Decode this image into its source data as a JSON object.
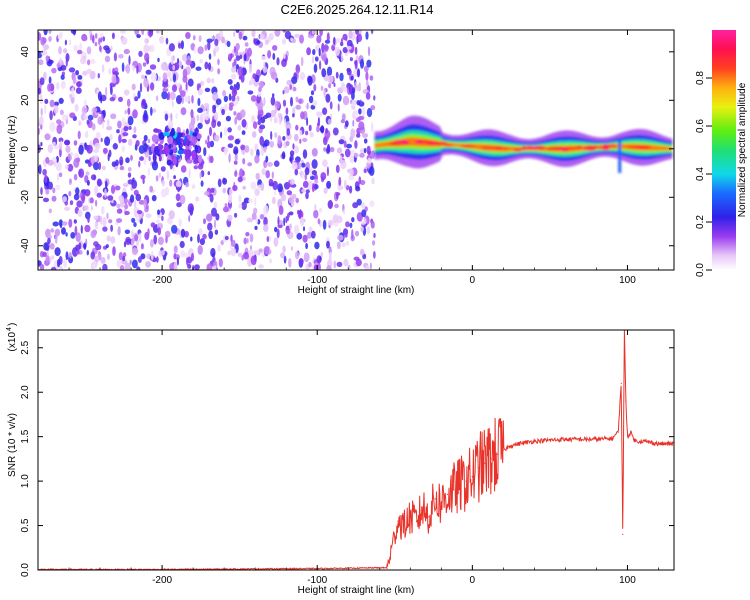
{
  "figure": {
    "title": "C2E6.2025.264.12.11.R14"
  },
  "chart_data": [
    {
      "type": "heatmap",
      "xlabel": "Height of straight line (km)",
      "ylabel": "Frequency (Hz)",
      "xlim": [
        -280,
        130
      ],
      "ylim": [
        -50,
        49
      ],
      "x_ticks": [
        -200,
        -100,
        0,
        100
      ],
      "y_ticks": [
        -40,
        -20,
        0,
        20,
        40
      ],
      "colorbar": {
        "label": "Normalized spectral amplitude",
        "range": [
          0,
          1
        ],
        "ticks": [
          "0.0",
          "0.2",
          "0.4",
          "0.6",
          "0.8"
        ],
        "colormap": "rainbow (white-violet-blue-cyan-green-yellow-red-magenta)"
      },
      "regions": [
        {
          "description": "noise",
          "x_range": [
            -280,
            -63
          ],
          "freq_range": [
            -50,
            49
          ],
          "amplitude_range": [
            0.0,
            0.25
          ]
        },
        {
          "description": "weak echo cluster",
          "x_range": [
            -205,
            -175
          ],
          "freq_range": [
            -6,
            8
          ],
          "amplitude_range": [
            0.1,
            0.25
          ]
        },
        {
          "description": "narrow echo band",
          "x_range": [
            -63,
            130
          ],
          "freq_range": [
            -5,
            7
          ],
          "amplitude_range": [
            0.2,
            1.0
          ]
        },
        {
          "description": "no data",
          "x_range": [
            -63,
            130
          ],
          "freq_range": [
            -50,
            49
          ]
        }
      ],
      "band_center_hz": [
        {
          "x": -60,
          "f": 1.5
        },
        {
          "x": -40,
          "f": 3
        },
        {
          "x": -20,
          "f": 2
        },
        {
          "x": 0,
          "f": 1
        },
        {
          "x": 20,
          "f": 0
        },
        {
          "x": 60,
          "f": 0
        },
        {
          "x": 95,
          "f": 1
        },
        {
          "x": 130,
          "f": 0
        }
      ]
    },
    {
      "type": "line",
      "xlabel": "Height of straight line (km)",
      "ylabel": "SNR (10 * v/v)",
      "y_multiplier": "(x10^4)",
      "xlim": [
        -280,
        130
      ],
      "ylim": [
        0,
        2.7
      ],
      "x_ticks": [
        -200,
        -100,
        0,
        100
      ],
      "y_ticks": [
        "0.0",
        "0.5",
        "1.0",
        "1.5",
        "2.0",
        "2.5"
      ],
      "color": "#e8322a",
      "series": [
        {
          "x": [
            -280,
            -200,
            -100,
            -55,
            -52,
            -48,
            -44,
            -40,
            -36,
            -32,
            -28,
            -24,
            -20,
            -16,
            -12,
            -8,
            -4,
            0,
            4,
            8,
            12,
            16,
            20,
            25,
            30,
            40,
            50,
            60,
            70,
            80,
            90,
            94,
            96,
            97,
            98,
            99,
            100,
            102,
            105,
            110,
            120,
            130
          ],
          "values": [
            0.0,
            0.0,
            0.01,
            0.02,
            0.25,
            0.55,
            0.5,
            0.6,
            0.55,
            0.7,
            0.6,
            0.8,
            0.75,
            0.85,
            0.9,
            0.95,
            1.0,
            1.05,
            1.15,
            1.2,
            1.25,
            1.3,
            1.35,
            1.4,
            1.42,
            1.45,
            1.46,
            1.47,
            1.47,
            1.47,
            1.48,
            1.55,
            2.1,
            0.4,
            2.7,
            1.9,
            1.5,
            1.55,
            1.45,
            1.45,
            1.42,
            1.42
          ]
        }
      ]
    }
  ],
  "icons": {
    "superscript_exponent": "4"
  }
}
